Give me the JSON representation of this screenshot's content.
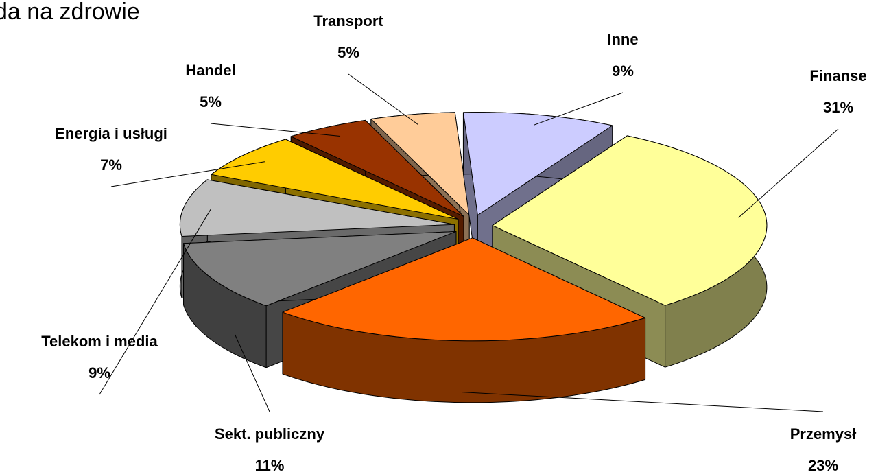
{
  "chart_data": {
    "type": "pie",
    "title": "da na zdrowie",
    "categories": [
      "Inne",
      "Finanse",
      "Przemysł",
      "Sekt. publiczny",
      "Telekom i media",
      "Energia i usługi",
      "Handel",
      "Transport"
    ],
    "values": [
      9,
      31,
      23,
      11,
      9,
      7,
      5,
      5
    ],
    "value_labels": [
      "9%",
      "31%",
      "23%",
      "11%",
      "9%",
      "7%",
      "5%",
      "5%"
    ],
    "colors": [
      "#ccccff",
      "#ffff99",
      "#ff6600",
      "#808080",
      "#c0c0c0",
      "#ffcc00",
      "#993300",
      "#ffcc99"
    ]
  }
}
